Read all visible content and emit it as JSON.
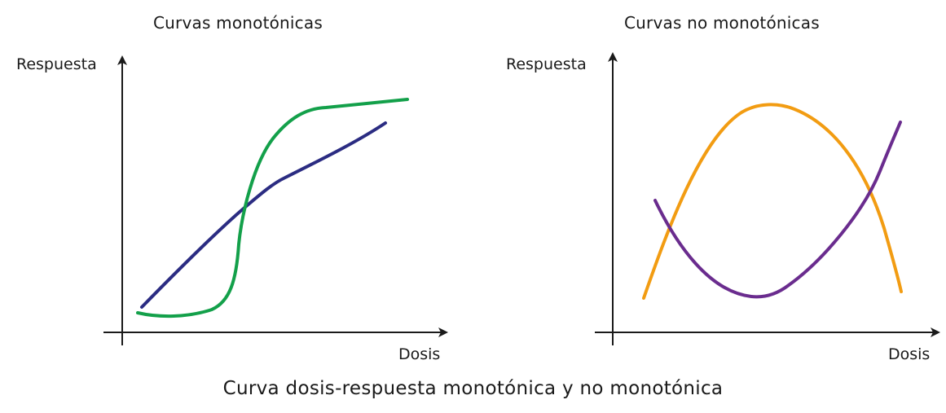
{
  "caption": "Curva dosis-respuesta monotónica y no monotónica",
  "colors": {
    "axis": "#1a1a1a",
    "green_curve": "#13a04a",
    "navy_curve": "#2b2c82",
    "orange_curve": "#f29c12",
    "purple_curve": "#6a2c8e"
  },
  "panels": [
    {
      "title": "Curvas monotónicas",
      "y_label": "Respuesta",
      "x_label": "Dosis",
      "curves": [
        {
          "name": "sigmoid",
          "color_key": "green_curve"
        },
        {
          "name": "increasing",
          "color_key": "navy_curve"
        }
      ]
    },
    {
      "title": "Curvas no monotónicas",
      "y_label": "Respuesta",
      "x_label": "Dosis",
      "curves": [
        {
          "name": "inverted-u",
          "color_key": "orange_curve"
        },
        {
          "name": "u-shaped",
          "color_key": "purple_curve"
        }
      ]
    }
  ]
}
